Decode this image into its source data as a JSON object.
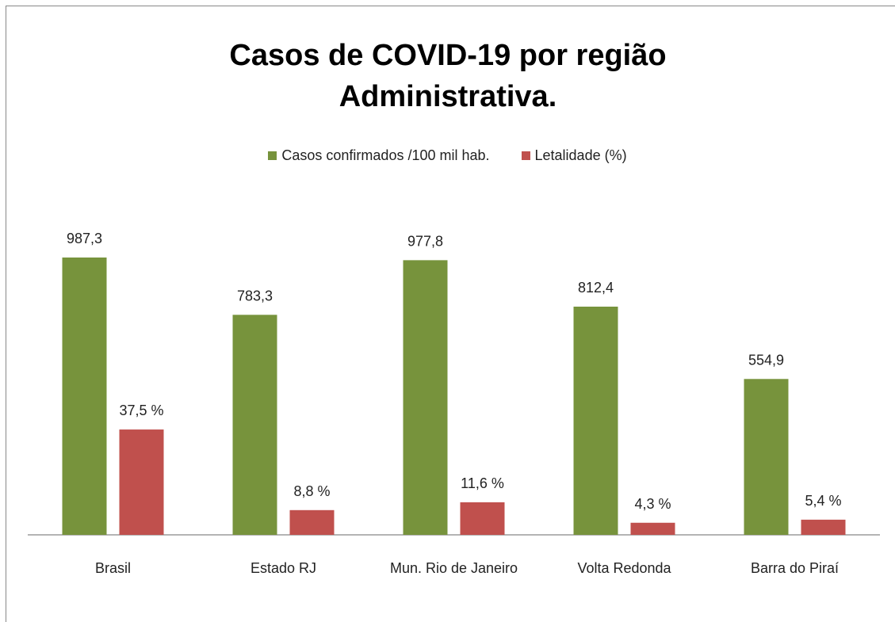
{
  "chart_data": {
    "type": "bar",
    "title": "Casos de COVID-19 por região Administrativa.",
    "categories": [
      "Brasil",
      "Estado RJ",
      "Mun. Rio de Janeiro",
      "Volta Redonda",
      "Barra do Piraí"
    ],
    "series": [
      {
        "name": "Casos confirmados /100 mil hab.",
        "color": "#77933c",
        "values": [
          987.3,
          783.3,
          977.8,
          812.4,
          554.9
        ],
        "value_labels": [
          "987,3",
          "783,3",
          "977,8",
          "812,4",
          "554,9"
        ]
      },
      {
        "name": "Letalidade (%)",
        "color": "#c0504d",
        "axis": "y2",
        "values": [
          37.5,
          8.8,
          11.6,
          4.3,
          5.4
        ],
        "value_labels": [
          "37,5 %",
          "8,8 %",
          "11,6 %",
          "4,3 %",
          "5,4 %"
        ]
      }
    ],
    "ylim": [
      0,
      1000
    ],
    "y2lim": [
      0,
      100
    ],
    "legend": "top"
  }
}
